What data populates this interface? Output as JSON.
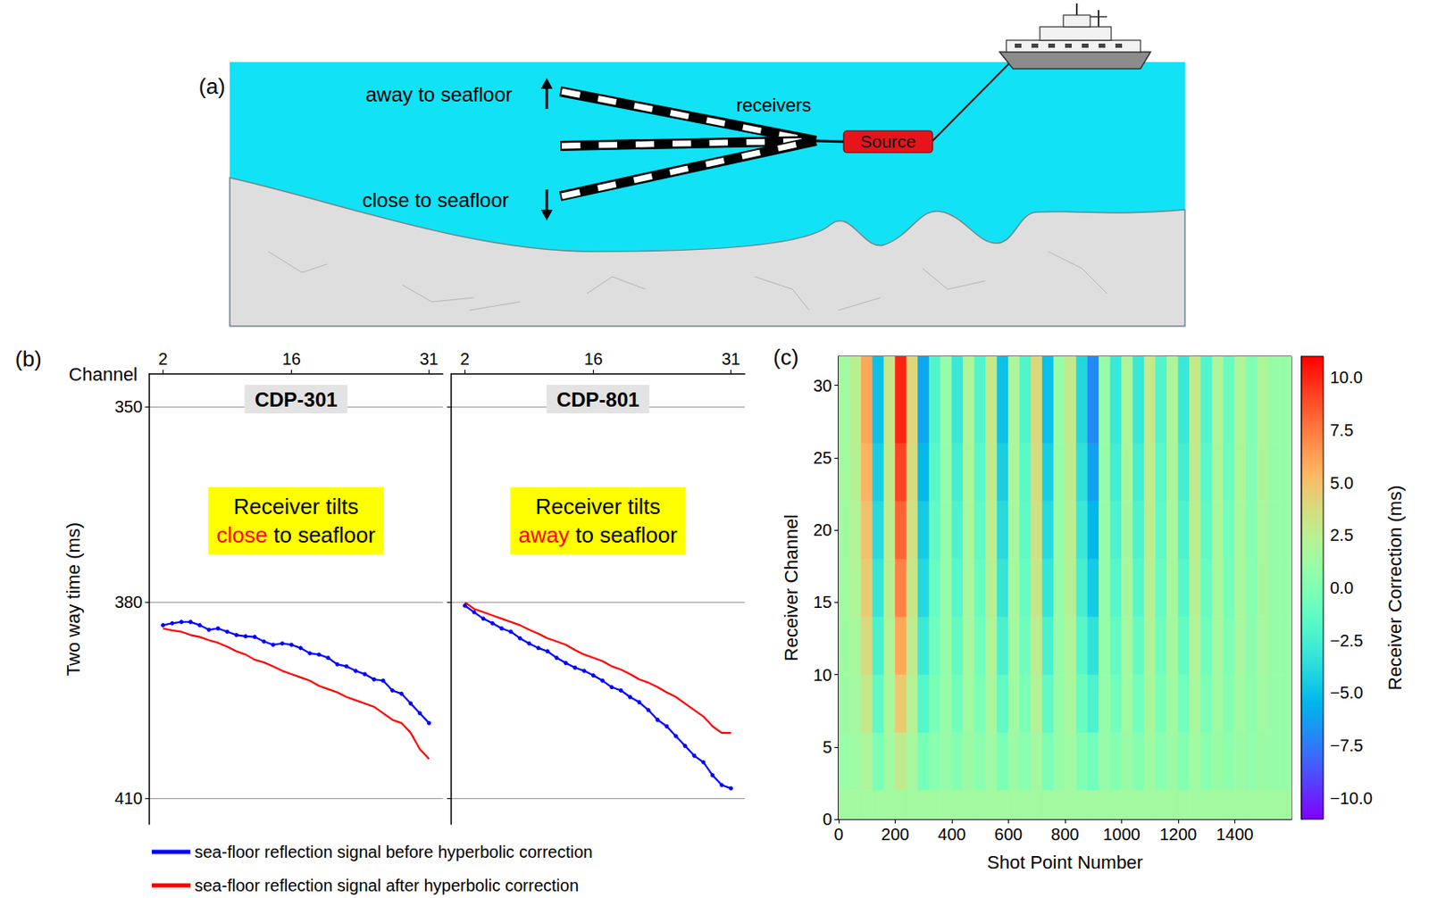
{
  "panel_a": {
    "label": "(a)",
    "top_label": "away to seafloor",
    "bottom_label": "close to seafloor",
    "streamer_label": "receivers",
    "source_label": "Source"
  },
  "chart_data": [
    {
      "label": "(b)",
      "type": "line",
      "x_label": "Channel",
      "y_label": "Two way time (ms)",
      "xlim": [
        0.5,
        32.5
      ],
      "xticks": [
        2,
        16,
        31
      ],
      "ylim": [
        345,
        414
      ],
      "yticks": [
        350,
        380,
        410
      ],
      "grid": true,
      "legend": "bottom",
      "panels": [
        {
          "title": "CDP-301",
          "annotation": {
            "lines": [
              "Receiver tilts",
              "close to seafloor"
            ],
            "highlight": "close"
          },
          "x": [
            2,
            3,
            4,
            5,
            6,
            7,
            8,
            9,
            10,
            11,
            12,
            13,
            14,
            15,
            16,
            17,
            18,
            19,
            20,
            21,
            22,
            23,
            24,
            25,
            26,
            27,
            28,
            29,
            30,
            31
          ],
          "series": [
            {
              "name": "sea-floor reflection signal before hyperbolic correction",
              "color": "#0000ff",
              "marker": "circle",
              "values": [
                383.5,
                383.2,
                383,
                383,
                383.5,
                384.2,
                384,
                384.5,
                385,
                385.2,
                385.3,
                386,
                386.5,
                386.3,
                386.5,
                387,
                387.8,
                388,
                388.5,
                389.5,
                389.8,
                390.5,
                391,
                391.8,
                392,
                393.5,
                394,
                395.5,
                397,
                398.5
              ]
            },
            {
              "name": "sea-floor reflection signal after hyperbolic correction",
              "color": "#ff0000",
              "values": [
                384,
                384.3,
                384.5,
                385,
                385.3,
                385.8,
                386.2,
                386.8,
                387.5,
                388,
                388.8,
                389.2,
                389.8,
                390.5,
                391,
                391.5,
                392,
                392.8,
                393.3,
                393.8,
                394.5,
                395,
                395.5,
                396,
                397,
                398,
                398.5,
                400,
                402.5,
                404
              ]
            }
          ]
        },
        {
          "title": "CDP-801",
          "annotation": {
            "lines": [
              "Receiver tilts",
              "away to seafloor"
            ],
            "highlight": "away"
          },
          "x": [
            2,
            3,
            4,
            5,
            6,
            7,
            8,
            9,
            10,
            11,
            12,
            13,
            14,
            15,
            16,
            17,
            18,
            19,
            20,
            21,
            22,
            23,
            24,
            25,
            26,
            27,
            28,
            29,
            30,
            31
          ],
          "series": [
            {
              "name": "sea-floor reflection signal before hyperbolic correction",
              "color": "#0000ff",
              "marker": "circle",
              "values": [
                380.5,
                381.5,
                382.5,
                383.2,
                384,
                384.5,
                385.5,
                386.3,
                387,
                387.5,
                388.5,
                389.3,
                390,
                390.5,
                391.2,
                392,
                393,
                393.5,
                394.5,
                395.3,
                396.5,
                398,
                399,
                400.5,
                402,
                403.5,
                404.5,
                406.5,
                408,
                408.5
              ]
            },
            {
              "name": "sea-floor reflection signal after hyperbolic correction",
              "color": "#ff0000",
              "values": [
                380,
                381,
                381.5,
                382,
                382.5,
                383,
                383.5,
                384.2,
                384.8,
                385.5,
                386,
                386.5,
                387.3,
                388,
                388.5,
                389,
                389.8,
                390.3,
                391,
                391.8,
                392.3,
                393,
                393.8,
                394.5,
                395.5,
                396.5,
                397.5,
                399,
                400,
                400
              ]
            }
          ]
        }
      ]
    },
    {
      "label": "(c)",
      "type": "heatmap",
      "x_label": "Shot Point Number",
      "y_label": "Receiver Channel",
      "xlim": [
        0,
        1600
      ],
      "xticks": [
        0,
        200,
        400,
        600,
        800,
        1000,
        1200,
        1400
      ],
      "ylim": [
        0,
        32
      ],
      "yticks": [
        0,
        5,
        10,
        15,
        20,
        25,
        30
      ],
      "grid": false,
      "x_bins": [
        0,
        40,
        80,
        120,
        160,
        200,
        240,
        280,
        320,
        360,
        400,
        440,
        480,
        520,
        560,
        600,
        640,
        680,
        720,
        760,
        800,
        840,
        880,
        920,
        960,
        1000,
        1040,
        1080,
        1120,
        1160,
        1200,
        1240,
        1280,
        1320,
        1360,
        1400,
        1440,
        1480,
        1520,
        1560,
        1600
      ],
      "y_bins": [
        0,
        2,
        6,
        10,
        14,
        18,
        22,
        26,
        32
      ],
      "cells": [
        [
          1.5,
          1.5,
          1.5,
          1.5,
          1.5,
          1.5,
          1.5,
          1.5,
          1.5,
          1.5,
          1.5,
          1.5,
          1.5,
          1.5,
          1.5,
          1.5,
          1.5,
          1.5,
          1.5,
          1.5,
          1.5,
          1.5,
          1.5,
          1.5,
          1.5,
          1.5,
          1.5,
          1.5,
          1.5,
          1.5,
          1.5,
          1.5,
          1.5,
          1.5,
          1.5,
          1.5,
          1.5,
          1.5,
          1.5,
          1.5
        ],
        [
          1.1,
          1.3,
          2,
          -0.2,
          1.4,
          2.8,
          1.6,
          -0.4,
          0.4,
          1,
          0.2,
          1.2,
          0.4,
          1.4,
          -0.2,
          1.2,
          0.4,
          1.6,
          -0.2,
          1,
          1.4,
          0,
          -0.6,
          1,
          0.2,
          1.2,
          0.2,
          1.4,
          0.4,
          1.2,
          0.2,
          1.4,
          0.4,
          1.2,
          0.6,
          1.2,
          0.8,
          1.2,
          1,
          1
        ],
        [
          1.2,
          1.6,
          3,
          -1.4,
          1.8,
          4.6,
          2.2,
          -1.8,
          -0.2,
          1,
          -0.6,
          1.4,
          -0.2,
          1.8,
          -1.4,
          1.4,
          -0.2,
          2.2,
          -1.4,
          1,
          1.8,
          -1,
          -2.2,
          1,
          -0.6,
          1.4,
          -0.6,
          1.8,
          -0.2,
          1.4,
          -0.6,
          1.8,
          -0.2,
          1.4,
          0.2,
          1.4,
          0.6,
          1.4,
          1,
          1
        ],
        [
          1.3,
          1.8,
          3.8,
          -2.3,
          2.1,
          6,
          2.7,
          -2.9,
          -0.7,
          1,
          -1.2,
          1.6,
          -0.7,
          2.1,
          -2.3,
          1.6,
          -0.7,
          2.7,
          -2.3,
          1,
          2.1,
          -1.8,
          -3.4,
          1,
          -1.2,
          1.6,
          -1.2,
          2.1,
          -0.7,
          1.6,
          -1.2,
          2.1,
          -0.7,
          1.6,
          -0.1,
          1.6,
          0.5,
          1.6,
          1,
          1
        ],
        [
          1.4,
          2.1,
          4.5,
          -3.2,
          2.4,
          7.3,
          3.1,
          -3.9,
          -1.1,
          1,
          -1.8,
          1.7,
          -1.1,
          2.4,
          -3.2,
          1.7,
          -1.1,
          3.1,
          -3.2,
          1,
          2.4,
          -2.5,
          -4.6,
          1,
          -1.8,
          1.7,
          -1.8,
          2.4,
          -1.1,
          1.7,
          -1.8,
          2.4,
          -1.1,
          1.7,
          -0.4,
          1.7,
          0.3,
          1.7,
          1,
          1
        ],
        [
          1.4,
          2.2,
          5,
          -3.8,
          2.6,
          8.2,
          3.4,
          -4.6,
          -1.4,
          1,
          -2.2,
          1.8,
          -1.4,
          2.6,
          -3.8,
          1.8,
          -1.4,
          3.4,
          -3.8,
          1,
          2.6,
          -3,
          -5.4,
          1,
          -2.2,
          1.8,
          -2.2,
          2.6,
          -1.4,
          1.8,
          -2.2,
          2.6,
          -1.4,
          1.8,
          -0.6,
          1.8,
          0.2,
          1.8,
          1,
          1
        ],
        [
          1.5,
          2.4,
          5.5,
          -4.4,
          2.8,
          9.1,
          3.7,
          -5.3,
          -1.7,
          1,
          -2.6,
          1.9,
          -1.7,
          2.8,
          -4.4,
          1.9,
          -1.7,
          3.7,
          -4.4,
          1,
          2.8,
          -3.5,
          -6.2,
          1,
          -2.6,
          1.9,
          -2.6,
          2.8,
          -1.7,
          1.9,
          -2.6,
          2.8,
          -1.7,
          1.9,
          -0.8,
          1.9,
          0.1,
          1.9,
          1,
          1
        ],
        [
          1.5,
          2.5,
          6,
          -5,
          3,
          10,
          4,
          -6,
          -2,
          1,
          -3,
          2,
          -2,
          3,
          -5,
          2,
          -2,
          4,
          -5,
          1,
          3,
          -4,
          -7,
          1,
          -3,
          2,
          -3,
          3,
          -2,
          2,
          -3,
          3,
          -2,
          2,
          -1,
          2,
          0,
          2,
          1,
          1
        ]
      ],
      "colorbar": {
        "label": "Receiver Correction (ms)",
        "range": [
          -11,
          11
        ],
        "ticks": [
          {
            "value": -10,
            "label": "−10.0"
          },
          {
            "value": -7.5,
            "label": "−7.5"
          },
          {
            "value": -5,
            "label": "−5.0"
          },
          {
            "value": -2.5,
            "label": "−2.5"
          },
          {
            "value": 0,
            "label": "0.0"
          },
          2.5,
          {
            "value": 5,
            "label": "5.0"
          },
          7.5,
          {
            "value": 10,
            "label": "10.0"
          }
        ]
      }
    }
  ]
}
